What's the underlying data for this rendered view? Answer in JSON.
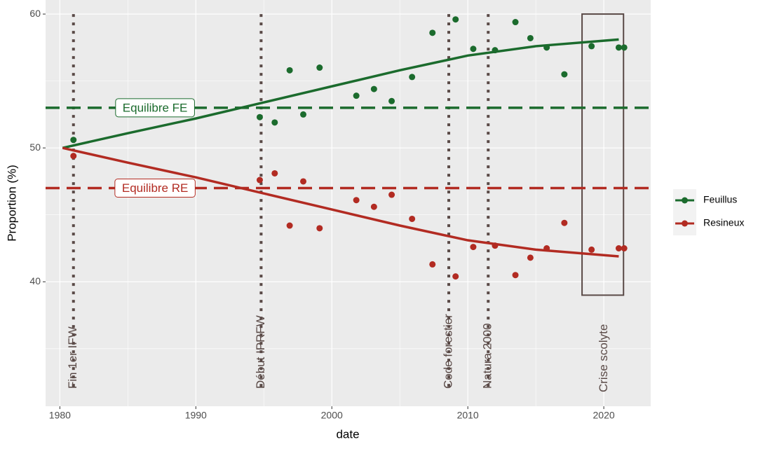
{
  "chart_data": {
    "type": "scatter",
    "x_label": "date",
    "y_label": "Proportion (%)",
    "xlim": [
      1978.95,
      2023.45
    ],
    "ylim": [
      30.7,
      61.05
    ],
    "xticks": [
      1980,
      1990,
      2000,
      2010,
      2020
    ],
    "yticks": [
      40,
      50,
      60
    ],
    "grid": true,
    "minor_grid": true,
    "legend_position": "right",
    "series": [
      {
        "name": "Feuillus",
        "color": "#1b6b2d",
        "x": [
          1981,
          1994.7,
          1995.8,
          1996.9,
          1997.9,
          1999.1,
          2001.8,
          2003.1,
          2004.4,
          2005.9,
          2007.4,
          2009.1,
          2010.4,
          2012.0,
          2013.5,
          2014.6,
          2015.8,
          2017.1,
          2019.1,
          2021.1,
          2021.5
        ],
        "values": [
          50.6,
          52.3,
          51.9,
          55.8,
          52.5,
          56.0,
          53.9,
          54.4,
          53.5,
          55.3,
          58.6,
          59.6,
          57.4,
          57.3,
          59.4,
          58.2,
          57.5,
          55.5,
          57.6,
          57.5,
          57.5
        ],
        "fit_x": [
          1980.2,
          1985,
          1990,
          1995,
          2000,
          2005,
          2010,
          2015,
          2021.1
        ],
        "fit_values": [
          50.0,
          51.1,
          52.2,
          53.4,
          54.6,
          55.8,
          56.9,
          57.6,
          58.1
        ]
      },
      {
        "name": "Resineux",
        "color": "#b22b22",
        "x": [
          1981,
          1994.7,
          1995.8,
          1996.9,
          1997.9,
          1999.1,
          2001.8,
          2003.1,
          2004.4,
          2005.9,
          2007.4,
          2009.1,
          2010.4,
          2012.0,
          2013.5,
          2014.6,
          2015.8,
          2017.1,
          2019.1,
          2021.1,
          2021.5
        ],
        "values": [
          49.4,
          47.6,
          48.1,
          44.2,
          47.5,
          44.0,
          46.1,
          45.6,
          46.5,
          44.7,
          41.3,
          40.4,
          42.6,
          42.7,
          40.5,
          41.8,
          42.5,
          44.4,
          42.4,
          42.5,
          42.5
        ],
        "fit_x": [
          1980.2,
          1985,
          1990,
          1995,
          2000,
          2005,
          2010,
          2015,
          2021.1
        ],
        "fit_values": [
          50.0,
          48.9,
          47.8,
          46.6,
          45.4,
          44.2,
          43.1,
          42.4,
          41.9
        ]
      }
    ],
    "reference_lines": [
      {
        "y": 53,
        "label": "Equilibre FE",
        "color": "#1b6b2d",
        "label_x": 1987
      },
      {
        "y": 47,
        "label": "Equilibre RE",
        "color": "#b22b22",
        "label_x": 1987
      }
    ],
    "events": [
      {
        "x": 1981,
        "label": "Fin 1er IFW"
      },
      {
        "x": 1994.8,
        "label": "Début IPRFW"
      },
      {
        "x": 2008.6,
        "label": "Code forestier"
      },
      {
        "x": 2011.5,
        "label": "Natura 2000"
      }
    ],
    "period": {
      "xmin": 2018.4,
      "xmax": 2021.45,
      "ymin": 39,
      "ymax": 60,
      "label": "Crise scolyte"
    },
    "event_color": "#5a4a47"
  }
}
